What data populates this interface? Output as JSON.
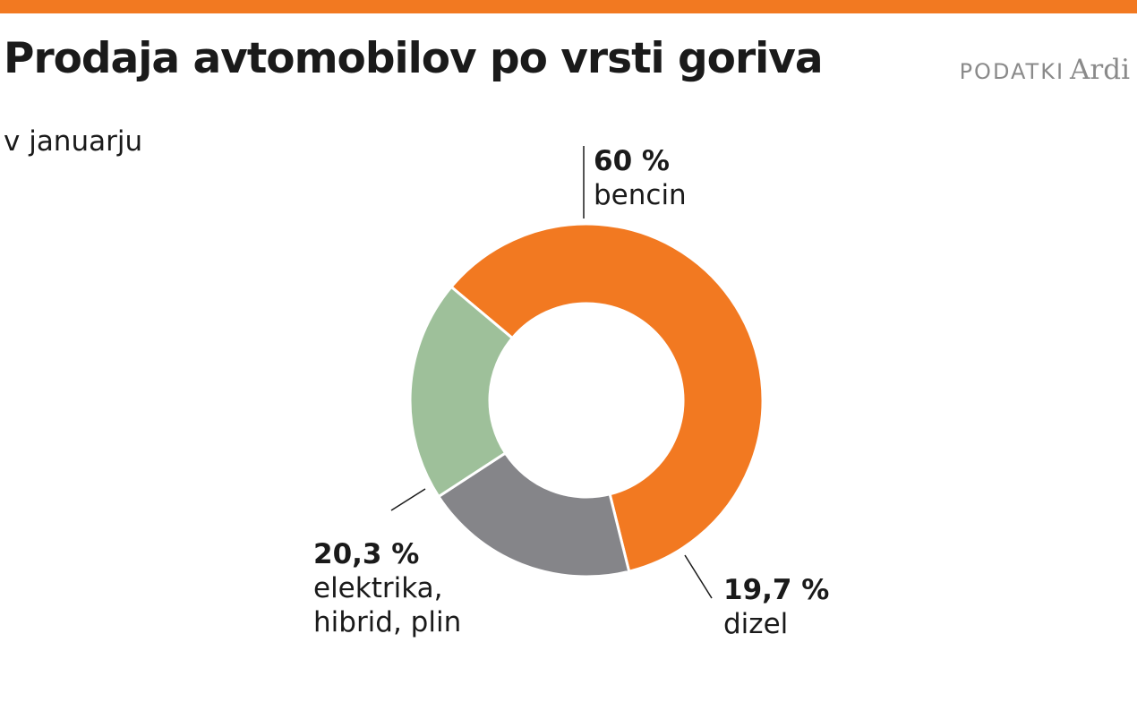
{
  "header": {
    "title": "Prodaja avtomobilov po vrsti goriva",
    "subtitle": "v januarju",
    "source_label": "PODATKI",
    "source_name": "Ardi"
  },
  "colors": {
    "accent": "#F27921",
    "bencin": "#F27921",
    "dizel": "#858589",
    "elektrika": "#9EC09A"
  },
  "chart_data": {
    "type": "pie",
    "title": "Prodaja avtomobilov po vrsti goriva",
    "subtitle": "v januarju",
    "variant": "donut",
    "slices": [
      {
        "label": "bencin",
        "value": 60,
        "display": "60 %",
        "color": "#F27921"
      },
      {
        "label": "dizel",
        "value": 19.7,
        "display": "19,7 %",
        "color": "#858589"
      },
      {
        "label": "elektrika, hibrid, plin",
        "label_lines": [
          "elektrika,",
          "hibrid, plin"
        ],
        "value": 20.3,
        "display": "20,3 %",
        "color": "#9EC09A"
      }
    ]
  }
}
